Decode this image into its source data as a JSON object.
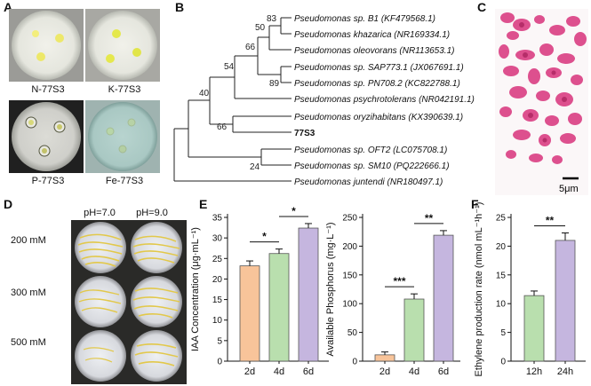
{
  "panels": {
    "A": {
      "label": "A",
      "plates": [
        {
          "caption": "N-77S3"
        },
        {
          "caption": "K-77S3"
        },
        {
          "caption": "P-77S3"
        },
        {
          "caption": "Fe-77S3"
        }
      ]
    },
    "B": {
      "label": "B",
      "taxa": [
        "Pseudomonas sp. B1 (KF479568.1)",
        "Pseudomonas khazarica (NR169334.1)",
        "Pseudomonas oleovorans (NR113653.1)",
        "Pseudomonas sp. SAP773.1 (JX067691.1)",
        "Pseudomonas sp. PN708.2 (KC822788.1)",
        "Pseudomonas psychrotolerans (NR042191.1)",
        "Pseudomonas oryzihabitans (KX390639.1)",
        "77S3",
        "Pseudomonas sp. OFT2 (LC075708.1)",
        "Pseudomonas sp. SM10 (PQ222666.1)",
        "Pseudomonas juntendi (NR180497.1)"
      ],
      "bootstrap": [
        "83",
        "50",
        "66",
        "89",
        "54",
        "40",
        "66",
        "24"
      ]
    },
    "C": {
      "label": "C",
      "scale": "5μm"
    },
    "D": {
      "label": "D",
      "columns": [
        "pH=7.0",
        "pH=9.0"
      ],
      "rows": [
        "200 mM",
        "300 mM",
        "500 mM"
      ]
    },
    "E": {
      "label": "E"
    },
    "F": {
      "label": "F"
    }
  },
  "colors": {
    "orange": "#f8c49a",
    "green": "#b9dfae",
    "purple": "#c5b6df",
    "stain": "#d6337a"
  },
  "chart_data": [
    {
      "type": "bar",
      "ylabel": "IAA Concentration (μg·mL⁻¹)",
      "categories": [
        "2d",
        "4d",
        "6d"
      ],
      "values": [
        23.2,
        26.2,
        32.4
      ],
      "errors": [
        1.2,
        1.1,
        1.1
      ],
      "ylim": [
        0,
        35
      ],
      "yticks": [
        "0",
        "5",
        "10",
        "15",
        "20",
        "25",
        "30",
        "35"
      ],
      "significance": [
        {
          "from": "2d",
          "to": "4d",
          "mark": "*"
        },
        {
          "from": "4d",
          "to": "6d",
          "mark": "*"
        }
      ]
    },
    {
      "type": "bar",
      "ylabel": "Available Phosphorus (mg·L⁻¹)",
      "categories": [
        "2d",
        "4d",
        "6d"
      ],
      "values": [
        11,
        108,
        219
      ],
      "errors": [
        5,
        9,
        8
      ],
      "ylim": [
        0,
        250
      ],
      "yticks": [
        "0",
        "50",
        "100",
        "150",
        "200",
        "250"
      ],
      "significance": [
        {
          "from": "2d",
          "to": "4d",
          "mark": "***"
        },
        {
          "from": "4d",
          "to": "6d",
          "mark": "**"
        }
      ]
    },
    {
      "type": "bar",
      "ylabel": "Ethylene production rate (nmol mL⁻¹h⁻¹)",
      "categories": [
        "12h",
        "24h"
      ],
      "values": [
        11.4,
        21.0
      ],
      "errors": [
        0.8,
        1.3
      ],
      "ylim": [
        0,
        25
      ],
      "yticks": [
        "0",
        "5",
        "10",
        "15",
        "20",
        "25"
      ],
      "significance": [
        {
          "from": "12h",
          "to": "24h",
          "mark": "**"
        }
      ]
    }
  ]
}
